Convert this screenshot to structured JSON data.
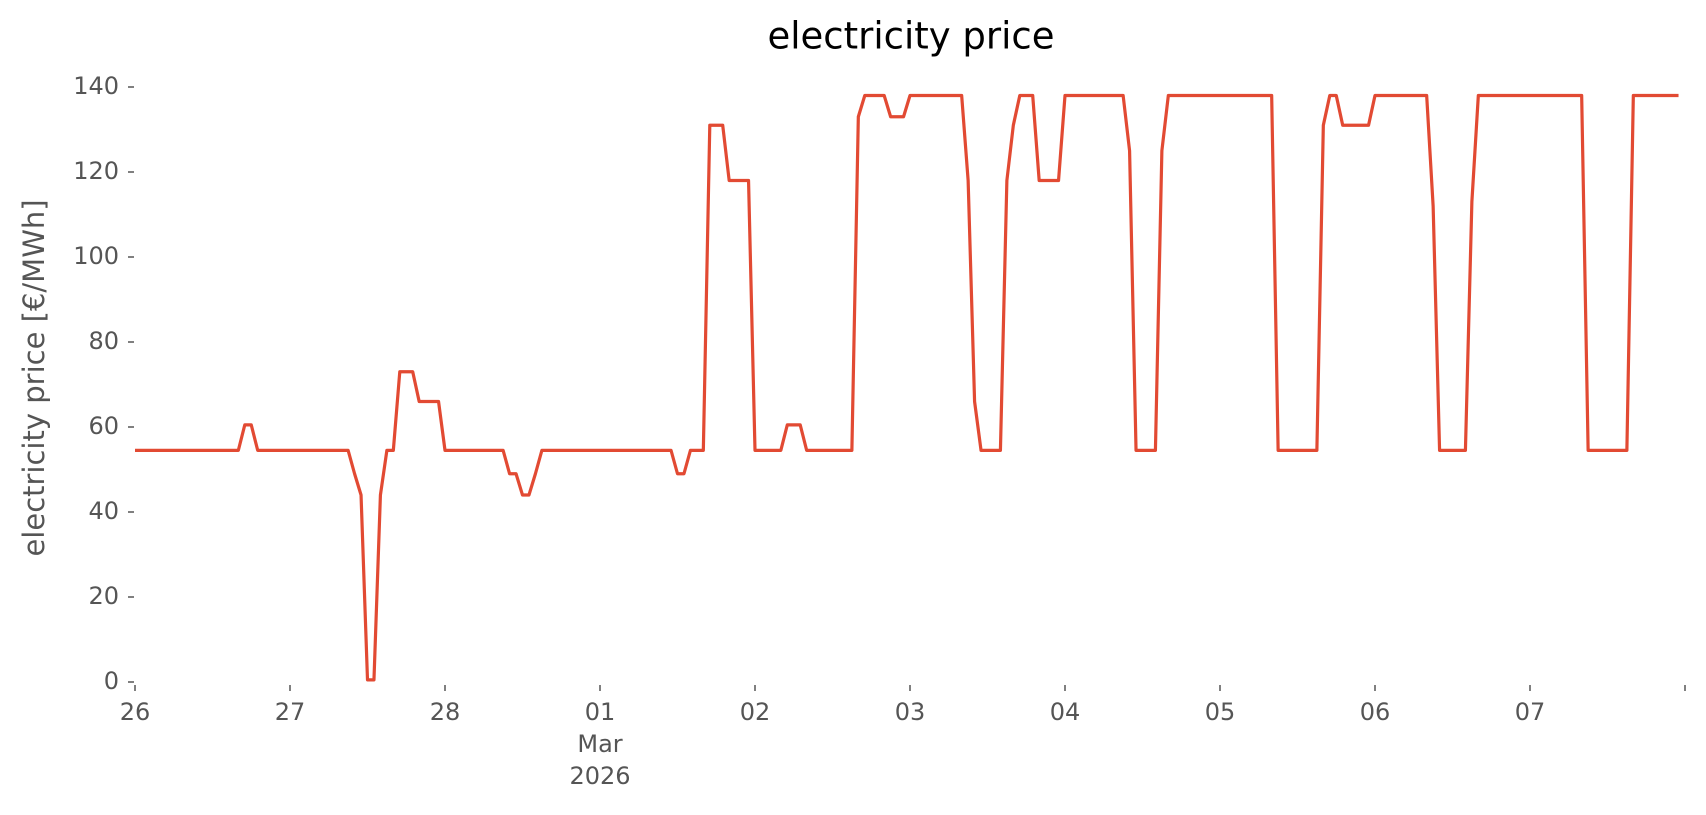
{
  "chart_data": {
    "type": "line",
    "title": "electricity price",
    "ylabel": "electricity price [€/MWh]",
    "color": "#e24a33",
    "x": [
      0,
      1,
      2,
      3,
      4,
      5,
      6,
      7,
      8,
      9,
      10,
      11,
      12,
      13,
      14,
      15,
      16,
      17,
      18,
      19,
      20,
      21,
      22,
      23,
      24,
      25,
      26,
      27,
      28,
      29,
      30,
      31,
      32,
      33,
      34,
      35,
      36,
      37,
      38,
      39,
      40,
      41,
      42,
      43,
      44,
      45,
      46,
      47,
      48,
      49,
      50,
      51,
      52,
      53,
      54,
      55,
      56,
      57,
      58,
      59,
      60,
      61,
      62,
      63,
      64,
      65,
      66,
      67,
      68,
      69,
      70,
      71,
      72,
      73,
      74,
      75,
      76,
      77,
      78,
      79,
      80,
      81,
      82,
      83,
      84,
      85,
      86,
      87,
      88,
      89,
      90,
      91,
      92,
      93,
      94,
      95,
      96,
      97,
      98,
      99,
      100,
      101,
      102,
      103,
      104,
      105,
      106,
      107,
      108,
      109,
      110,
      111,
      112,
      113,
      114,
      115,
      116,
      117,
      118,
      119,
      120,
      121,
      122,
      123,
      124,
      125,
      126,
      127,
      128,
      129,
      130,
      131,
      132,
      133,
      134,
      135,
      136,
      137,
      138,
      139,
      140,
      141,
      142,
      143,
      144,
      145,
      146,
      147,
      148,
      149,
      150,
      151,
      152,
      153,
      154,
      155,
      156,
      157,
      158,
      159,
      160,
      161,
      162,
      163,
      164,
      165,
      166,
      167,
      168,
      169,
      170,
      171,
      172,
      173,
      174,
      175,
      176,
      177,
      178,
      179,
      180,
      181,
      182,
      183,
      184,
      185,
      186,
      187,
      188,
      189,
      190,
      191,
      192,
      193,
      194,
      195,
      196,
      197,
      198,
      199,
      200,
      201,
      202,
      203,
      204,
      205,
      206,
      207,
      208,
      209,
      210,
      211,
      212,
      213,
      214,
      215,
      216,
      217,
      218,
      219,
      220,
      221,
      222,
      223,
      224,
      225,
      226,
      227,
      228,
      229,
      230,
      231,
      232,
      233,
      234,
      235,
      236,
      237,
      238,
      239
    ],
    "values": [
      54.5,
      54.5,
      54.5,
      54.5,
      54.5,
      54.5,
      54.5,
      54.5,
      54.5,
      54.5,
      54.5,
      54.5,
      54.5,
      54.5,
      54.5,
      54.5,
      54.5,
      60.5,
      60.5,
      54.5,
      54.5,
      54.5,
      54.5,
      54.5,
      54.5,
      54.5,
      54.5,
      54.5,
      54.5,
      54.5,
      54.5,
      54.5,
      54.5,
      54.5,
      49,
      44,
      0.5,
      0.5,
      44,
      54.5,
      54.5,
      73,
      73,
      73,
      66,
      66,
      66,
      66,
      54.5,
      54.5,
      54.5,
      54.5,
      54.5,
      54.5,
      54.5,
      54.5,
      54.5,
      54.5,
      49,
      49,
      44,
      44,
      49,
      54.5,
      54.5,
      54.5,
      54.5,
      54.5,
      54.5,
      54.5,
      54.5,
      54.5,
      54.5,
      54.5,
      54.5,
      54.5,
      54.5,
      54.5,
      54.5,
      54.5,
      54.5,
      54.5,
      54.5,
      54.5,
      49,
      49,
      54.5,
      54.5,
      54.5,
      131,
      131,
      131,
      118,
      118,
      118,
      118,
      54.5,
      54.5,
      54.5,
      54.5,
      54.5,
      60.5,
      60.5,
      60.5,
      54.5,
      54.5,
      54.5,
      54.5,
      54.5,
      54.5,
      54.5,
      54.5,
      133,
      138,
      138,
      138,
      138,
      133,
      133,
      133,
      138,
      138,
      138,
      138,
      138,
      138,
      138,
      138,
      138,
      118,
      66,
      54.5,
      54.5,
      54.5,
      54.5,
      118,
      131,
      138,
      138,
      138,
      118,
      118,
      118,
      118,
      138,
      138,
      138,
      138,
      138,
      138,
      138,
      138,
      138,
      138,
      125,
      54.5,
      54.5,
      54.5,
      54.5,
      125,
      138,
      138,
      138,
      138,
      138,
      138,
      138,
      138,
      138,
      138,
      138,
      138,
      138,
      138,
      138,
      138,
      138,
      54.5,
      54.5,
      54.5,
      54.5,
      54.5,
      54.5,
      54.5,
      131,
      138,
      138,
      131,
      131,
      131,
      131,
      131,
      138,
      138,
      138,
      138,
      138,
      138,
      138,
      138,
      138,
      112,
      54.5,
      54.5,
      54.5,
      54.5,
      54.5,
      113,
      138,
      138,
      138,
      138,
      138,
      138,
      138,
      138,
      138,
      138,
      138,
      138,
      138,
      138,
      138,
      138,
      138,
      54.5,
      54.5,
      54.5,
      54.5,
      54.5,
      54.5,
      54.5,
      138,
      138,
      138,
      138,
      138,
      138,
      138,
      138
    ],
    "xlim": [
      0,
      240
    ],
    "xticks": [
      {
        "value": 0,
        "label": "26"
      },
      {
        "value": 24,
        "label": "27"
      },
      {
        "value": 48,
        "label": "28"
      },
      {
        "value": 72,
        "label": "01\nMar\n2026"
      },
      {
        "value": 96,
        "label": "02"
      },
      {
        "value": 120,
        "label": "03"
      },
      {
        "value": 144,
        "label": "04"
      },
      {
        "value": 168,
        "label": "05"
      },
      {
        "value": 192,
        "label": "06"
      },
      {
        "value": 216,
        "label": "07"
      },
      {
        "value": 240,
        "label": null
      }
    ],
    "ylim": [
      0,
      140
    ],
    "yticks": [
      0,
      20,
      40,
      60,
      80,
      100,
      120,
      140
    ],
    "grid": false
  }
}
